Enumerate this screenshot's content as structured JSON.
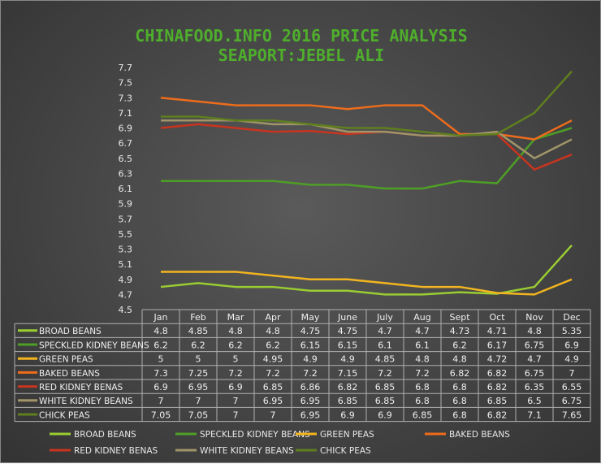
{
  "chart_data": {
    "type": "line",
    "title": "CHINAFOOD.INFO   2016   PRICE ANALYSIS",
    "subtitle": "SEAPORT:JEBEL ALI",
    "xlabel": "",
    "ylabel": "",
    "ylim": [
      4.5,
      7.7
    ],
    "yticks": [
      "7.7",
      "7.5",
      "7.3",
      "7.1",
      "6.9",
      "6.7",
      "6.5",
      "6.3",
      "6.1",
      "5.9",
      "5.7",
      "5.5",
      "5.3",
      "5.1",
      "4.9",
      "4.7",
      "4.5"
    ],
    "grid": false,
    "legend": "bottom",
    "data_table": true,
    "categories": [
      "Jan",
      "Feb",
      "Mar",
      "Apr",
      "May",
      "June",
      "July",
      "Aug",
      "Sept",
      "Oct",
      "Nov",
      "Dec"
    ],
    "series": [
      {
        "name": "BROAD BEANS",
        "color": "#9acd32",
        "values": [
          "4.8",
          "4.85",
          "4.8",
          "4.8",
          "4.75",
          "4.75",
          "4.7",
          "4.7",
          "4.73",
          "4.71",
          "4.8",
          "5.35"
        ]
      },
      {
        "name": "SPECKLED KIDNEY BEANS",
        "color": "#4e9f26",
        "values": [
          "6.2",
          "6.2",
          "6.2",
          "6.2",
          "6.15",
          "6.15",
          "6.1",
          "6.1",
          "6.2",
          "6.17",
          "6.75",
          "6.9"
        ]
      },
      {
        "name": "GREEN PEAS",
        "color": "#f2b51f",
        "values": [
          "5",
          "5",
          "5",
          "4.95",
          "4.9",
          "4.9",
          "4.85",
          "4.8",
          "4.8",
          "4.72",
          "4.7",
          "4.9"
        ]
      },
      {
        "name": "BAKED BEANS",
        "color": "#ee6c1b",
        "values": [
          "7.3",
          "7.25",
          "7.2",
          "7.2",
          "7.2",
          "7.15",
          "7.2",
          "7.2",
          "6.82",
          "6.82",
          "6.75",
          "7"
        ]
      },
      {
        "name": "RED KIDNEY BENAS",
        "color": "#c8341f",
        "values": [
          "6.9",
          "6.95",
          "6.9",
          "6.85",
          "6.86",
          "6.82",
          "6.85",
          "6.8",
          "6.8",
          "6.82",
          "6.35",
          "6.55"
        ]
      },
      {
        "name": "WHITE KIDNEY BEANS",
        "color": "#a09468",
        "values": [
          "7",
          "7",
          "7",
          "6.95",
          "6.95",
          "6.85",
          "6.85",
          "6.8",
          "6.8",
          "6.85",
          "6.5",
          "6.75"
        ]
      },
      {
        "name": "CHICK PEAS",
        "color": "#5f7f1f",
        "values": [
          "7.05",
          "7.05",
          "7",
          "7",
          "6.95",
          "6.9",
          "6.9",
          "6.85",
          "6.8",
          "6.82",
          "7.1",
          "7.65"
        ]
      }
    ]
  }
}
